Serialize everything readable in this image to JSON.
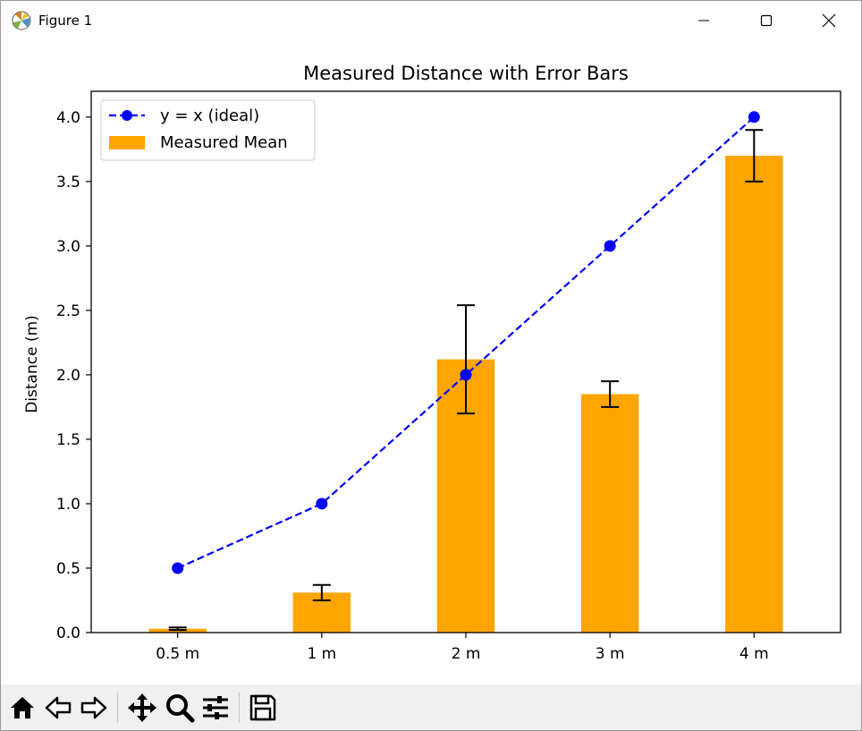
{
  "window": {
    "title": "Figure 1"
  },
  "chart_data": {
    "type": "bar",
    "title": "Measured Distance with Error Bars",
    "xlabel": "",
    "ylabel": "Distance (m)",
    "categories": [
      "0.5 m",
      "1 m",
      "2 m",
      "3 m",
      "4 m"
    ],
    "ylim": [
      0,
      4.2
    ],
    "yticks": [
      "0.0",
      "0.5",
      "1.0",
      "1.5",
      "2.0",
      "2.5",
      "3.0",
      "3.5",
      "4.0"
    ],
    "legend_position": "top-left",
    "grid": false,
    "series": [
      {
        "name": "y = x (ideal)",
        "kind": "line",
        "style": "dashed",
        "marker": "circle",
        "color": "#0000ff",
        "values": [
          0.5,
          1.0,
          2.0,
          3.0,
          4.0
        ]
      },
      {
        "name": "Measured Mean",
        "kind": "bar",
        "color": "#ffa500",
        "values": [
          0.03,
          0.31,
          2.12,
          1.85,
          3.7
        ],
        "error": [
          0.01,
          0.06,
          0.42,
          0.1,
          0.2
        ]
      }
    ]
  },
  "toolbar": {
    "icons": [
      "home-icon",
      "back-icon",
      "forward-icon",
      "pan-icon",
      "zoom-icon",
      "configure-icon",
      "save-icon"
    ]
  }
}
